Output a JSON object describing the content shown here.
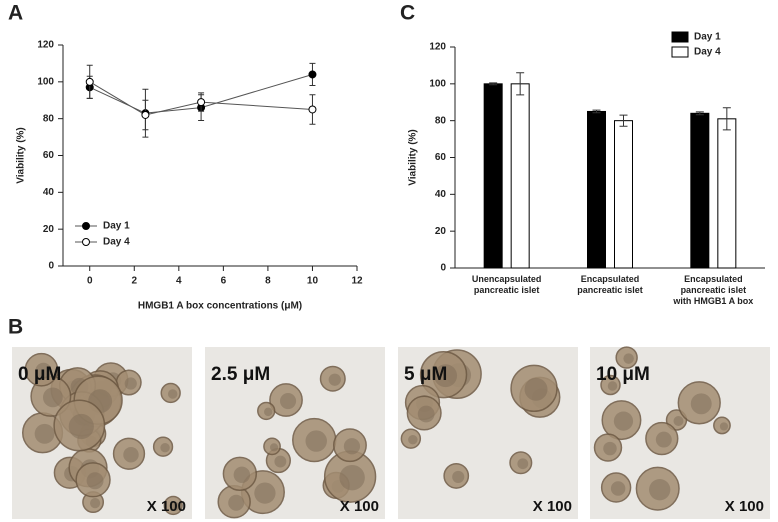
{
  "chart_data": [
    {
      "panel": "A",
      "type": "line",
      "x": [
        0,
        2.5,
        5,
        10
      ],
      "xlim": [
        -1.2,
        12
      ],
      "xticks": [
        0,
        2,
        4,
        6,
        8,
        10,
        12
      ],
      "ylim": [
        0,
        120
      ],
      "yticks": [
        0,
        20,
        40,
        60,
        80,
        100,
        120
      ],
      "xlabel": "HMGB1 A box concentrations (μM)",
      "ylabel": "Viability (%)",
      "legend": "lower left",
      "series": [
        {
          "name": "Day 1",
          "color": "#000000",
          "marker": "filled",
          "values": [
            97,
            83,
            86,
            104
          ],
          "errors": [
            6,
            13,
            7,
            6
          ]
        },
        {
          "name": "Day 4",
          "color": "#000000",
          "marker": "open",
          "values": [
            100,
            82,
            89,
            85
          ],
          "errors": [
            9,
            8,
            5,
            8
          ]
        }
      ]
    },
    {
      "panel": "C",
      "type": "bar",
      "categories": [
        "Unencapsulated\npancreatic islet",
        "Encapsulated\npancreatic islet",
        "Encapsulated\npancreatic islet\nwith HMGB1 A box"
      ],
      "ylim": [
        0,
        120
      ],
      "yticks": [
        0,
        20,
        40,
        60,
        80,
        100,
        120
      ],
      "ylabel": "Viability (%)",
      "legend": "upper right",
      "series": [
        {
          "name": "Day 1",
          "color": "#000000",
          "values": [
            100,
            85,
            84
          ],
          "errors": [
            0.5,
            0.7,
            0.8
          ]
        },
        {
          "name": "Day 4",
          "color": "#ffffff",
          "values": [
            100,
            80,
            81
          ],
          "errors": [
            6,
            3,
            6
          ]
        }
      ]
    }
  ],
  "panel_b": {
    "panel": "B",
    "images": [
      {
        "concentration": "0 μM",
        "magnification": "X 100"
      },
      {
        "concentration": "2.5 μM",
        "magnification": "X 100"
      },
      {
        "concentration": "5 μM",
        "magnification": "X 100"
      },
      {
        "concentration": "10 μM",
        "magnification": "X 100"
      }
    ]
  }
}
